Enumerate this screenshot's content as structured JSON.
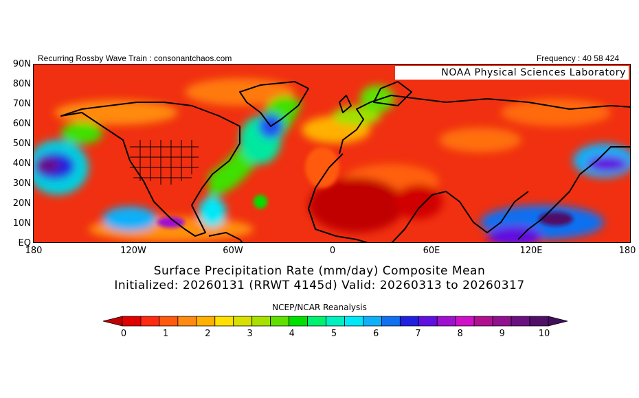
{
  "header": {
    "left": "Recurring Rossby Wave Train : consonantchaos.com",
    "right": "Frequency : 40 58 424"
  },
  "map": {
    "credit": "NOAA Physical Sciences Laboratory",
    "latitude_labels": [
      "90N",
      "80N",
      "70N",
      "60N",
      "50N",
      "40N",
      "30N",
      "20N",
      "10N",
      "EQ"
    ],
    "longitude_labels": [
      "180",
      "120W",
      "60W",
      "0",
      "60E",
      "120E",
      "180"
    ]
  },
  "title": {
    "line1": "Surface Precipitation Rate (mm/day) Composite Mean",
    "line2": "Initialized: 20260131 (RRWT 4145d) Valid: 20260313 to 20260317"
  },
  "source": "NCEP/NCAR Reanalysis",
  "colorbar": {
    "labels": [
      "0",
      "1",
      "2",
      "3",
      "4",
      "5",
      "6",
      "7",
      "8",
      "9",
      "10"
    ],
    "colors": [
      "#e00000",
      "#ff2a10",
      "#ff5a10",
      "#ff8a10",
      "#ffb000",
      "#ffe000",
      "#d8e000",
      "#a8e000",
      "#60e000",
      "#00e000",
      "#00f070",
      "#00f0c0",
      "#00e8f8",
      "#10b0f8",
      "#1070f0",
      "#2020e0",
      "#6010e0",
      "#a010d0",
      "#d010c8",
      "#b01090",
      "#901090",
      "#6a1080",
      "#501068"
    ],
    "low_cap_color": "#c00000",
    "high_cap_color": "#40105a"
  }
}
